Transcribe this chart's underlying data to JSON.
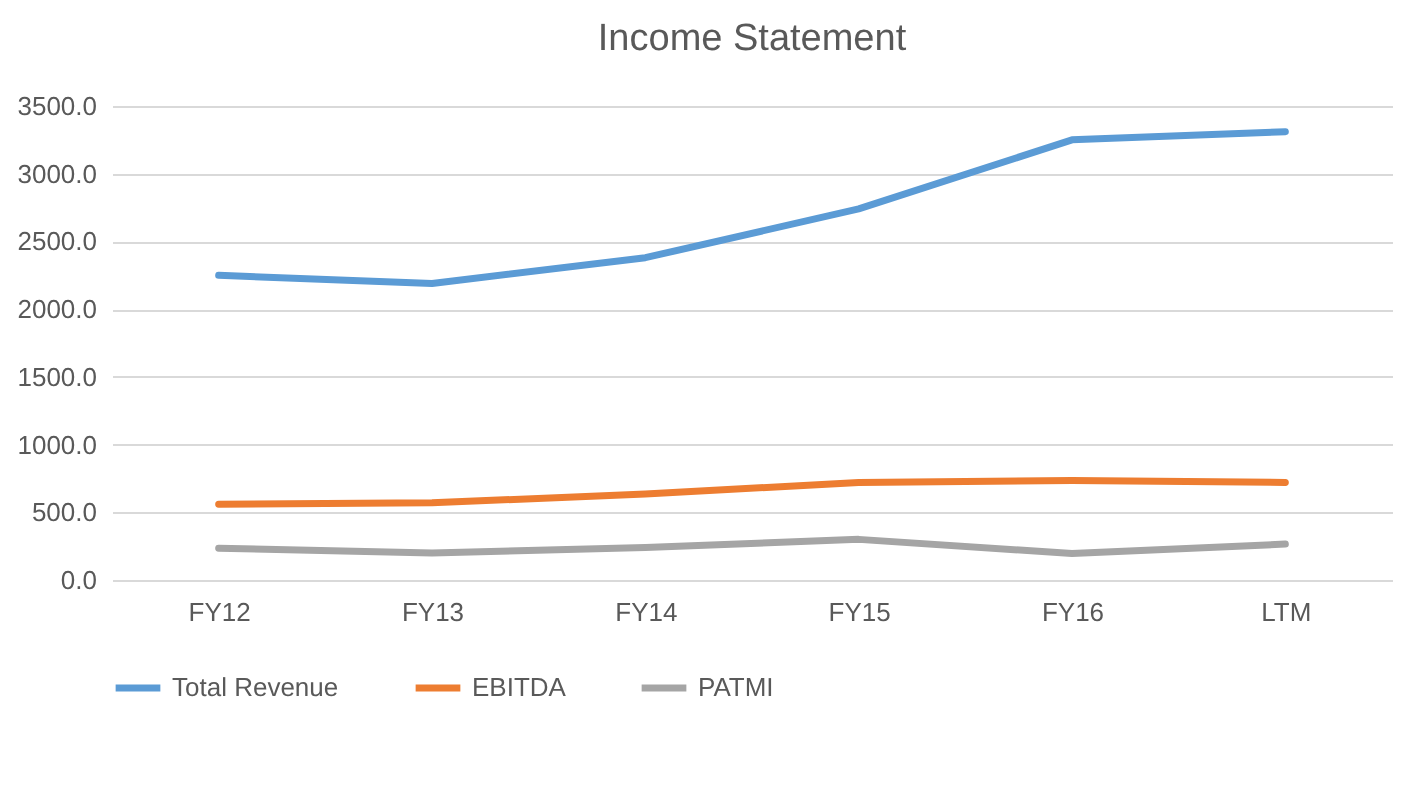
{
  "chart_data": {
    "type": "line",
    "title": "Income Statement",
    "categories": [
      "FY12",
      "FY13",
      "FY14",
      "FY15",
      "FY16",
      "LTM"
    ],
    "series": [
      {
        "name": "Total Revenue",
        "color": "#5b9bd5",
        "values": [
          2250,
          2190,
          2380,
          2740,
          3250,
          3310
        ]
      },
      {
        "name": "EBITDA",
        "color": "#ed7d31",
        "values": [
          560,
          570,
          635,
          720,
          735,
          720
        ]
      },
      {
        "name": "PATMI",
        "color": "#a5a5a5",
        "values": [
          235,
          200,
          240,
          300,
          195,
          265
        ]
      }
    ],
    "ylim": [
      0,
      3500
    ],
    "yticks": [
      {
        "value": 0,
        "label": "0.0"
      },
      {
        "value": 500,
        "label": "500.0"
      },
      {
        "value": 1000,
        "label": "1000.0"
      },
      {
        "value": 1500,
        "label": "1500.0"
      },
      {
        "value": 2000,
        "label": "2000.0"
      },
      {
        "value": 2500,
        "label": "2500.0"
      },
      {
        "value": 3000,
        "label": "3000.0"
      },
      {
        "value": 3500,
        "label": "3500.0"
      }
    ],
    "grid": "y",
    "legend": "bottom",
    "marker": "none",
    "line_style": "solid"
  }
}
